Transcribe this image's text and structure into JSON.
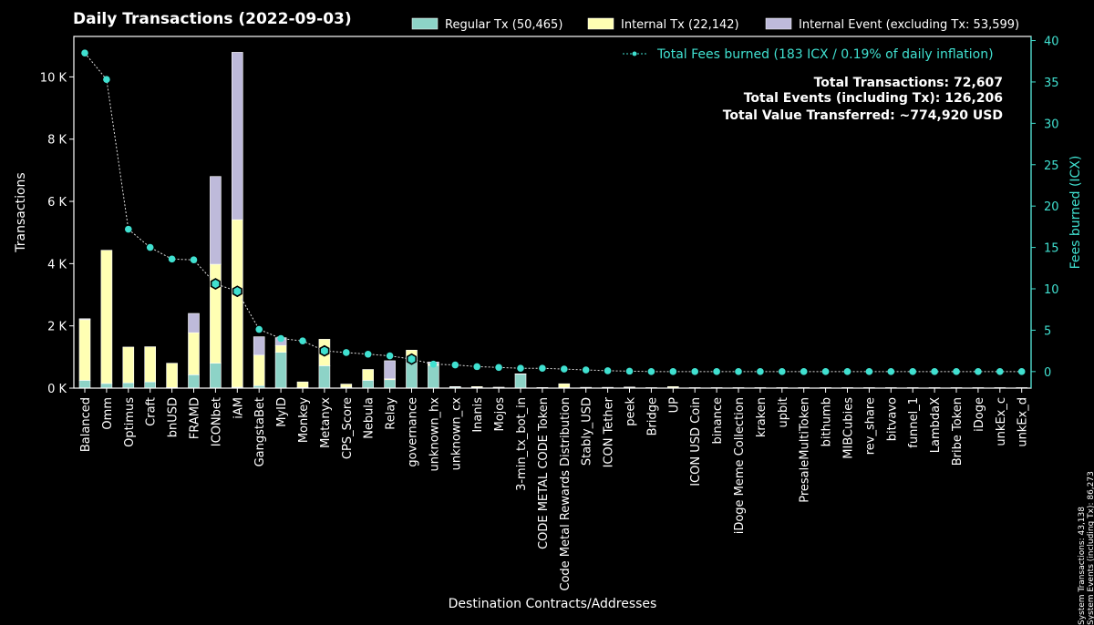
{
  "chart_data": {
    "type": "bar",
    "title": "Daily Transactions (2022-09-03)",
    "xlabel": "Destination Contracts/Addresses",
    "ylabel": "Transactions",
    "y2label": "Fees burned (ICX)",
    "ylim": [
      0,
      11300
    ],
    "y2lim": [
      -2,
      40.5
    ],
    "yticks": [
      0,
      2000,
      4000,
      6000,
      8000,
      10000
    ],
    "ytick_labels": [
      "0 K",
      "2 K",
      "4 K",
      "6 K",
      "8 K",
      "10 K"
    ],
    "y2ticks": [
      0,
      5,
      10,
      15,
      20,
      25,
      30,
      35,
      40
    ],
    "y2tick_labels": [
      "0",
      "5",
      "10",
      "15",
      "20",
      "25",
      "30",
      "35",
      "40"
    ],
    "categories": [
      "Balanced",
      "Omm",
      "Optimus",
      "Craft",
      "bnUSD",
      "FRAMD",
      "ICONbet",
      "iAM",
      "GangstaBet",
      "MyID",
      "Monkey",
      "Metanyx",
      "CPS_Score",
      "Nebula",
      "Relay",
      "governance",
      "unknown_hx",
      "unknown_cx",
      "Inanis",
      "Mojos",
      "3-min_tx_bot_in",
      "CODE METAL CODE Token",
      "Code Metal Rewards Distribution",
      "Stably_USD",
      "ICON Tether",
      "peek",
      "Bridge",
      "UP",
      "ICON USD Coin",
      "binance",
      "iDoge Meme Collection",
      "kraken",
      "upbit",
      "PresaleMultiToken",
      "bithumb",
      "MIBCubies",
      "rev_share",
      "bitvavo",
      "funnel_1",
      "LambdaX",
      "Bribe Token",
      "iDoge",
      "unkEx_c",
      "unkEx_d"
    ],
    "series": [
      {
        "name": "Regular Tx (50,465)",
        "color": "#8dd3c7",
        "values": [
          250,
          150,
          170,
          200,
          20,
          430,
          800,
          30,
          80,
          1150,
          20,
          720,
          30,
          250,
          270,
          1000,
          730,
          40,
          20,
          20,
          450,
          15,
          20,
          20,
          15,
          15,
          10,
          10,
          10,
          10,
          10,
          10,
          10,
          10,
          10,
          10,
          10,
          10,
          10,
          10,
          10,
          10,
          10,
          10
        ]
      },
      {
        "name": "Internal Tx (22,142)",
        "color": "#ffffb3",
        "values": [
          1950,
          4280,
          1150,
          1130,
          780,
          1350,
          3180,
          5380,
          980,
          220,
          180,
          850,
          100,
          350,
          30,
          220,
          50,
          10,
          30,
          10,
          10,
          5,
          120,
          5,
          10,
          20,
          5,
          40,
          5,
          5,
          5,
          5,
          5,
          5,
          5,
          5,
          5,
          5,
          5,
          5,
          5,
          5,
          5,
          5
        ]
      },
      {
        "name": "Internal Event (excluding Tx: 53,599)",
        "color": "#bebada",
        "values": [
          30,
          0,
          0,
          0,
          0,
          620,
          2820,
          5380,
          590,
          250,
          0,
          0,
          0,
          0,
          580,
          0,
          60,
          0,
          0,
          0,
          0,
          0,
          0,
          0,
          0,
          0,
          0,
          0,
          0,
          0,
          0,
          0,
          0,
          0,
          0,
          0,
          0,
          0,
          0,
          0,
          0,
          0,
          0,
          0
        ]
      }
    ],
    "line_series": {
      "name": "Total Fees burned (183 ICX / 0.19% of daily inflation)",
      "color": "#40e0d0",
      "axis": "right",
      "values": [
        38.5,
        35.3,
        17.2,
        15.0,
        13.6,
        13.5,
        10.6,
        9.7,
        5.1,
        4.0,
        3.7,
        2.5,
        2.3,
        2.1,
        1.9,
        1.5,
        0.9,
        0.8,
        0.6,
        0.5,
        0.4,
        0.4,
        0.3,
        0.2,
        0.1,
        0.05,
        0,
        0,
        0,
        0,
        0,
        0,
        0,
        0,
        0,
        0,
        0,
        0,
        0,
        0,
        0,
        0,
        0,
        0
      ],
      "highlighted_indices": [
        6,
        7,
        11,
        15
      ]
    },
    "annotations": [
      "Total Transactions: 72,607",
      "Total Events (including Tx): 126,206",
      "Total Value Transferred: ~774,920 USD"
    ],
    "side_notes": [
      "System Transactions: 43,138",
      "System Events (including Tx): 86,273"
    ],
    "legend_position": "top"
  }
}
